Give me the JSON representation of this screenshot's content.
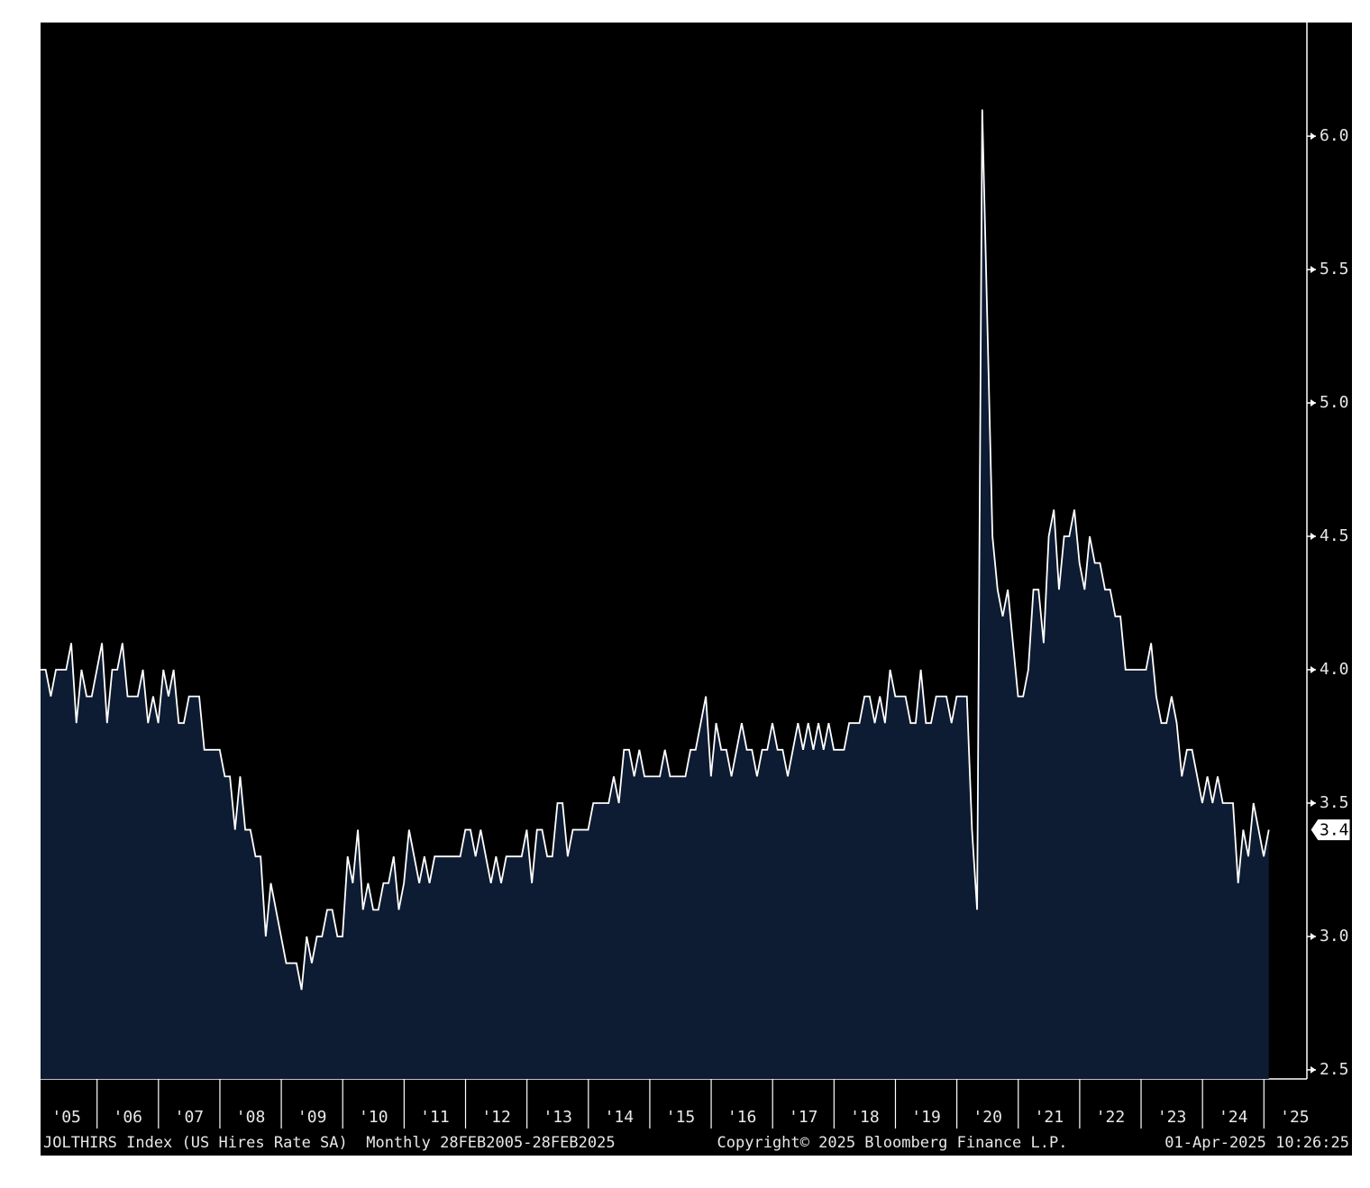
{
  "chart_data": {
    "type": "area",
    "color": "#ffffff",
    "fill": "#0d1b33",
    "values": [
      4.0,
      4.0,
      3.9,
      4.0,
      4.0,
      4.0,
      4.1,
      3.8,
      4.0,
      3.9,
      3.9,
      4.0,
      4.1,
      3.8,
      4.0,
      4.0,
      4.1,
      3.9,
      3.9,
      3.9,
      4.0,
      3.8,
      3.9,
      3.8,
      4.0,
      3.9,
      4.0,
      3.8,
      3.8,
      3.9,
      3.9,
      3.9,
      3.7,
      3.7,
      3.7,
      3.7,
      3.6,
      3.6,
      3.4,
      3.6,
      3.4,
      3.4,
      3.3,
      3.3,
      3.0,
      3.2,
      3.1,
      3.0,
      2.9,
      2.9,
      2.9,
      2.8,
      3.0,
      2.9,
      3.0,
      3.0,
      3.1,
      3.1,
      3.0,
      3.0,
      3.3,
      3.2,
      3.4,
      3.1,
      3.2,
      3.1,
      3.1,
      3.2,
      3.2,
      3.3,
      3.1,
      3.2,
      3.4,
      3.3,
      3.2,
      3.3,
      3.2,
      3.3,
      3.3,
      3.3,
      3.3,
      3.3,
      3.3,
      3.4,
      3.4,
      3.3,
      3.4,
      3.3,
      3.2,
      3.3,
      3.2,
      3.3,
      3.3,
      3.3,
      3.3,
      3.4,
      3.2,
      3.4,
      3.4,
      3.3,
      3.3,
      3.5,
      3.5,
      3.3,
      3.4,
      3.4,
      3.4,
      3.4,
      3.5,
      3.5,
      3.5,
      3.5,
      3.6,
      3.5,
      3.7,
      3.7,
      3.6,
      3.7,
      3.6,
      3.6,
      3.6,
      3.6,
      3.7,
      3.6,
      3.6,
      3.6,
      3.6,
      3.7,
      3.7,
      3.8,
      3.9,
      3.6,
      3.8,
      3.7,
      3.7,
      3.6,
      3.7,
      3.8,
      3.7,
      3.7,
      3.6,
      3.7,
      3.7,
      3.8,
      3.7,
      3.7,
      3.6,
      3.7,
      3.8,
      3.7,
      3.8,
      3.7,
      3.8,
      3.7,
      3.8,
      3.7,
      3.7,
      3.7,
      3.8,
      3.8,
      3.8,
      3.9,
      3.9,
      3.8,
      3.9,
      3.8,
      4.0,
      3.9,
      3.9,
      3.9,
      3.8,
      3.8,
      4.0,
      3.8,
      3.8,
      3.9,
      3.9,
      3.9,
      3.8,
      3.9,
      3.9,
      3.9,
      3.4,
      3.1,
      6.1,
      5.3,
      4.5,
      4.3,
      4.2,
      4.3,
      4.1,
      3.9,
      3.9,
      4.0,
      4.3,
      4.3,
      4.1,
      4.5,
      4.6,
      4.3,
      4.5,
      4.5,
      4.6,
      4.4,
      4.3,
      4.5,
      4.4,
      4.4,
      4.3,
      4.3,
      4.2,
      4.2,
      4.0,
      4.0,
      4.0,
      4.0,
      4.0,
      4.1,
      3.9,
      3.8,
      3.8,
      3.9,
      3.8,
      3.6,
      3.7,
      3.7,
      3.6,
      3.5,
      3.6,
      3.5,
      3.6,
      3.5,
      3.5,
      3.5,
      3.2,
      3.4,
      3.3,
      3.5,
      3.4,
      3.3,
      3.4
    ],
    "xlim": [
      2005.08,
      2025.7
    ],
    "xticks": [
      {
        "value": 2005,
        "label": "'05"
      },
      {
        "value": 2006,
        "label": "'06"
      },
      {
        "value": 2007,
        "label": "'07"
      },
      {
        "value": 2008,
        "label": "'08"
      },
      {
        "value": 2009,
        "label": "'09"
      },
      {
        "value": 2010,
        "label": "'10"
      },
      {
        "value": 2011,
        "label": "'11"
      },
      {
        "value": 2012,
        "label": "'12"
      },
      {
        "value": 2013,
        "label": "'13"
      },
      {
        "value": 2014,
        "label": "'14"
      },
      {
        "value": 2015,
        "label": "'15"
      },
      {
        "value": 2016,
        "label": "'16"
      },
      {
        "value": 2017,
        "label": "'17"
      },
      {
        "value": 2018,
        "label": "'18"
      },
      {
        "value": 2019,
        "label": "'19"
      },
      {
        "value": 2020,
        "label": "'20"
      },
      {
        "value": 2021,
        "label": "'21"
      },
      {
        "value": 2022,
        "label": "'22"
      },
      {
        "value": 2023,
        "label": "'23"
      },
      {
        "value": 2024,
        "label": "'24"
      },
      {
        "value": 2025,
        "label": "'25"
      }
    ],
    "ylim": [
      2.466,
      6.426
    ],
    "yticks": [
      2.5,
      {
        "value": 3,
        "label": "3.0"
      },
      3.5,
      {
        "value": 4,
        "label": "4.0"
      },
      4.5,
      {
        "value": 5,
        "label": "5.0"
      },
      5.5,
      {
        "value": 6,
        "label": "6.0"
      }
    ],
    "footer": {
      "left": "JOLTHIRS Index (US Hires Rate SA)  Monthly 28FEB2005-28FEB2025",
      "center": "Copyright© 2025 Bloomberg Finance L.P.",
      "right": "01-Apr-2025 10:26:25"
    }
  }
}
